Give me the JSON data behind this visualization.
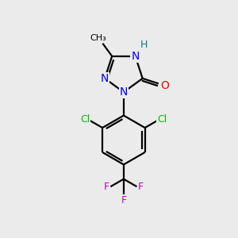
{
  "background_color": "#ebebeb",
  "bond_color": "#000000",
  "bond_width": 1.6,
  "atom_colors": {
    "C": "#000000",
    "H": "#008080",
    "N": "#0000ff",
    "O": "#ff0000",
    "Cl": "#00bb00",
    "F": "#cc00cc"
  },
  "figsize": [
    3.0,
    3.0
  ],
  "dpi": 100
}
